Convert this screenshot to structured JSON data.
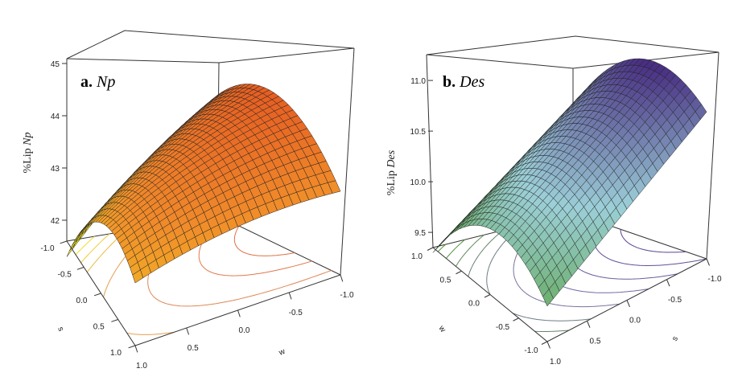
{
  "chart_data": [
    {
      "type": "surface3d",
      "panel": "a",
      "title": {
        "prefix": "a.",
        "name": "Np"
      },
      "zlabel": {
        "prefix": "%Lip ",
        "name": "Np"
      },
      "xlabel": "s",
      "ylabel": "w",
      "s_ticks": [
        "-1.0",
        "-0.5",
        "0.0",
        "0.5",
        "1.0"
      ],
      "w_ticks": [
        "1.0",
        "0.5",
        "0.0",
        "-0.5",
        "-1.0"
      ],
      "z_ticks": [
        42,
        43,
        44,
        45
      ],
      "zlim": [
        41.6,
        45.1
      ],
      "model": {
        "c": 43.9,
        "s": 0.2,
        "w": -0.75,
        "ss": -0.9,
        "ww": -0.2,
        "sw": 0.55
      },
      "contour_levels": [
        41.6,
        41.9,
        42.2,
        42.5,
        43.0,
        43.5,
        44.0,
        44.3
      ],
      "colors": {
        "low": "#f5f020",
        "mid": "#f08a2a",
        "high": "#e0461e",
        "contour": "#e08a5a"
      }
    },
    {
      "type": "surface3d",
      "panel": "b",
      "title": {
        "prefix": "b.",
        "name": "Des"
      },
      "zlabel": {
        "prefix": "%Lip ",
        "name": "Des"
      },
      "xlabel": "w",
      "ylabel": "s",
      "w_ticks": [
        "1.0",
        "0.5",
        "0.0",
        "-0.5",
        "-1.0"
      ],
      "s_ticks": [
        "1.0",
        "0.5",
        "0.0",
        "-0.5",
        "-1.0"
      ],
      "z_ticks": [
        9.5,
        10.0,
        10.5,
        11.0
      ],
      "zlim": [
        9.35,
        11.2
      ],
      "model": {
        "c": 10.55,
        "s": -0.55,
        "w": -0.2,
        "ss": 0.0,
        "ww": -0.5,
        "sw": 0.0
      },
      "contour_levels": [
        9.4,
        9.55,
        9.7,
        9.85,
        10.0,
        10.2,
        10.4,
        10.6,
        10.8,
        11.0
      ],
      "colors": {
        "low": "#4f9a2a",
        "mid": "#9ccfd8",
        "high": "#3e1a78",
        "contour": "#7a70a8"
      }
    }
  ]
}
